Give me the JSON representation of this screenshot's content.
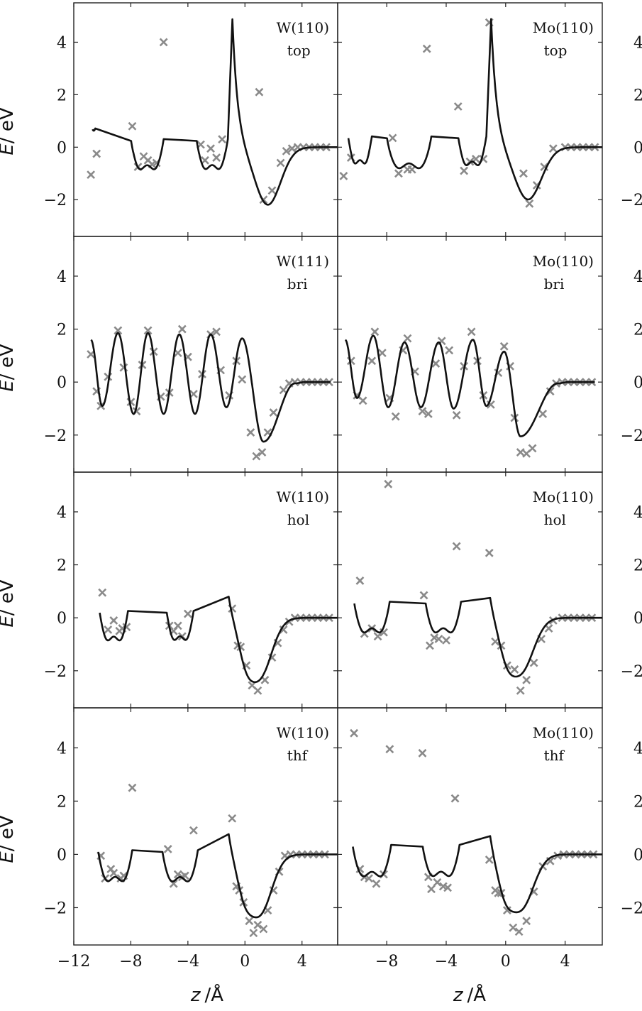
{
  "figure": {
    "xlabel_var": "z",
    "xlabel_unit": "/Å",
    "ylabel_var": "E",
    "ylabel_unit": "/ eV"
  },
  "chart_data": [
    {
      "type": "line+scatter",
      "label_line1": "W(110)",
      "label_line2": "top",
      "xlim": [
        -12,
        6.5
      ],
      "ylim": [
        -3.4,
        5.5
      ],
      "xticks": [
        "−12",
        "−8",
        "−4",
        "0",
        "4"
      ],
      "yticks": [
        "−2",
        "0",
        "2",
        "4"
      ],
      "line": {
        "well_edges": [
          [
            -10.7,
            -10.5
          ],
          [
            -8.0,
            -5.7
          ],
          [
            -3.4,
            -1.2
          ]
        ],
        "well_level": -0.85,
        "final_wall": 0.6,
        "min_x": 1.6,
        "min_y": -2.2
      },
      "points": [
        [
          -10.8,
          -1.05
        ],
        [
          -10.4,
          -0.25
        ],
        [
          -7.9,
          0.8
        ],
        [
          -7.5,
          -0.75
        ],
        [
          -7.1,
          -0.35
        ],
        [
          -6.8,
          -0.5
        ],
        [
          -6.5,
          -0.65
        ],
        [
          -6.2,
          -0.6
        ],
        [
          -5.7,
          4.0
        ],
        [
          -3.1,
          0.1
        ],
        [
          -2.8,
          -0.5
        ],
        [
          -2.4,
          -0.05
        ],
        [
          -2.0,
          -0.4
        ],
        [
          -1.6,
          0.3
        ],
        [
          1.0,
          2.1
        ],
        [
          1.3,
          -2.0
        ],
        [
          1.9,
          -1.65
        ],
        [
          2.5,
          -0.6
        ],
        [
          2.9,
          -0.15
        ],
        [
          3.3,
          -0.05
        ],
        [
          3.7,
          0.0
        ],
        [
          4.1,
          0.0
        ],
        [
          4.5,
          0.0
        ],
        [
          4.9,
          0.0
        ],
        [
          5.3,
          0.0
        ],
        [
          5.7,
          0.0
        ]
      ]
    },
    {
      "type": "line+scatter",
      "label_line1": "Mo(110)",
      "label_line2": "top",
      "xlim": [
        -11.3,
        6.5
      ],
      "ylim": [
        -3.4,
        5.5
      ],
      "xticks": [
        "−8",
        "−4",
        "0",
        "4"
      ],
      "yticks": [
        "−2",
        "0",
        "2",
        "4"
      ],
      "line": {
        "well_edges": [
          [
            -10.6,
            -9.0
          ],
          [
            -8.0,
            -5.0
          ],
          [
            -3.2,
            -1.3
          ]
        ],
        "well_level": -0.75,
        "final_wall": 0.5,
        "min_x": 1.5,
        "min_y": -2.0
      },
      "points": [
        [
          -10.9,
          -1.1
        ],
        [
          -10.4,
          -0.4
        ],
        [
          -7.6,
          0.35
        ],
        [
          -7.2,
          -1.0
        ],
        [
          -6.6,
          -0.85
        ],
        [
          -6.3,
          -0.85
        ],
        [
          -5.3,
          3.75
        ],
        [
          -3.2,
          1.55
        ],
        [
          -2.8,
          -0.9
        ],
        [
          -2.4,
          -0.55
        ],
        [
          -2.0,
          -0.45
        ],
        [
          -1.5,
          -0.45
        ],
        [
          -1.1,
          4.75
        ],
        [
          1.2,
          -1.0
        ],
        [
          1.6,
          -2.15
        ],
        [
          2.1,
          -1.45
        ],
        [
          2.6,
          -0.75
        ],
        [
          3.2,
          -0.05
        ],
        [
          4.0,
          0.0
        ],
        [
          4.4,
          0.0
        ],
        [
          4.8,
          0.0
        ],
        [
          5.2,
          0.0
        ],
        [
          5.6,
          0.0
        ],
        [
          6.0,
          0.0
        ]
      ]
    },
    {
      "type": "line+scatter",
      "label_line1": "W(111)",
      "label_line2": "bri",
      "xlim": [
        -12,
        6.5
      ],
      "ylim": [
        -3.4,
        5.5
      ],
      "xticks": [
        "−12",
        "−8",
        "−4",
        "0",
        "4"
      ],
      "yticks": [
        "−2",
        "0",
        "2",
        "4"
      ],
      "line": {
        "oscillation_maxima": [
          [
            -8.9,
            1.85
          ],
          [
            -6.8,
            1.85
          ],
          [
            -4.6,
            1.8
          ],
          [
            -2.4,
            1.8
          ],
          [
            -0.2,
            1.65
          ]
        ],
        "oscillation_minima": [
          [
            -10.0,
            -0.9
          ],
          [
            -7.8,
            -1.2
          ],
          [
            -5.7,
            -1.2
          ],
          [
            -3.5,
            -1.2
          ],
          [
            -1.3,
            -0.95
          ]
        ],
        "min_x": 1.3,
        "min_y": -2.25
      },
      "points": [
        [
          -10.8,
          1.05
        ],
        [
          -10.4,
          -0.35
        ],
        [
          -10.1,
          -0.9
        ],
        [
          -9.6,
          0.2
        ],
        [
          -8.9,
          1.95
        ],
        [
          -8.5,
          0.55
        ],
        [
          -8.0,
          -0.75
        ],
        [
          -7.6,
          -1.1
        ],
        [
          -7.2,
          0.65
        ],
        [
          -6.8,
          1.95
        ],
        [
          -6.4,
          1.15
        ],
        [
          -5.9,
          -0.55
        ],
        [
          -5.3,
          -0.4
        ],
        [
          -4.7,
          1.1
        ],
        [
          -4.4,
          2.0
        ],
        [
          -4.0,
          0.95
        ],
        [
          -3.6,
          -0.45
        ],
        [
          -3.0,
          0.3
        ],
        [
          -2.4,
          1.8
        ],
        [
          -2.0,
          1.9
        ],
        [
          -1.7,
          0.45
        ],
        [
          -1.1,
          -0.5
        ],
        [
          -0.6,
          0.8
        ],
        [
          -0.2,
          0.1
        ],
        [
          0.4,
          -1.9
        ],
        [
          0.8,
          -2.8
        ],
        [
          1.2,
          -2.65
        ],
        [
          1.6,
          -1.9
        ],
        [
          2.0,
          -1.15
        ],
        [
          2.7,
          -0.3
        ],
        [
          3.1,
          -0.05
        ],
        [
          3.5,
          0.0
        ],
        [
          3.9,
          0.0
        ],
        [
          4.3,
          0.0
        ],
        [
          4.7,
          0.0
        ],
        [
          5.1,
          0.0
        ],
        [
          5.5,
          0.0
        ],
        [
          5.9,
          0.0
        ]
      ]
    },
    {
      "type": "line+scatter",
      "label_line1": "Mo(110)",
      "label_line2": "bri",
      "xlim": [
        -11.3,
        6.5
      ],
      "ylim": [
        -3.4,
        5.5
      ],
      "xticks": [
        "−8",
        "−4",
        "0",
        "4"
      ],
      "yticks": [
        "−2",
        "0",
        "2",
        "4"
      ],
      "line": {
        "oscillation_maxima": [
          [
            -8.9,
            1.75
          ],
          [
            -6.8,
            1.5
          ],
          [
            -4.5,
            1.5
          ],
          [
            -2.2,
            1.6
          ],
          [
            -0.1,
            1.15
          ]
        ],
        "oscillation_minima": [
          [
            -10.0,
            -0.6
          ],
          [
            -7.9,
            -0.95
          ],
          [
            -5.7,
            -0.95
          ],
          [
            -3.5,
            -1.0
          ],
          [
            -1.3,
            -0.9
          ]
        ],
        "min_x": 1.0,
        "min_y": -2.05
      },
      "points": [
        [
          -10.4,
          0.8
        ],
        [
          -10.0,
          -0.5
        ],
        [
          -9.6,
          -0.7
        ],
        [
          -9.0,
          0.8
        ],
        [
          -8.8,
          1.9
        ],
        [
          -8.3,
          1.1
        ],
        [
          -7.8,
          -0.6
        ],
        [
          -7.4,
          -1.3
        ],
        [
          -6.9,
          1.2
        ],
        [
          -6.6,
          1.65
        ],
        [
          -6.1,
          0.4
        ],
        [
          -5.6,
          -1.1
        ],
        [
          -5.2,
          -1.2
        ],
        [
          -4.7,
          0.7
        ],
        [
          -4.3,
          1.55
        ],
        [
          -3.8,
          1.2
        ],
        [
          -3.3,
          -1.25
        ],
        [
          -2.8,
          0.6
        ],
        [
          -2.3,
          1.9
        ],
        [
          -1.9,
          0.8
        ],
        [
          -1.5,
          -0.5
        ],
        [
          -1.0,
          -0.85
        ],
        [
          -0.5,
          0.35
        ],
        [
          -0.1,
          1.35
        ],
        [
          0.3,
          0.6
        ],
        [
          0.6,
          -1.35
        ],
        [
          1.0,
          -2.65
        ],
        [
          1.4,
          -2.7
        ],
        [
          1.8,
          -2.5
        ],
        [
          2.5,
          -1.2
        ],
        [
          3.0,
          -0.35
        ],
        [
          3.4,
          -0.05
        ],
        [
          3.8,
          0.0
        ],
        [
          4.2,
          0.0
        ],
        [
          4.6,
          0.0
        ],
        [
          5.0,
          0.0
        ],
        [
          5.4,
          0.0
        ],
        [
          5.8,
          0.0
        ]
      ]
    },
    {
      "type": "line+scatter",
      "label_line1": "W(110)",
      "label_line2": "hol",
      "xlim": [
        -12,
        6.5
      ],
      "ylim": [
        -3.4,
        5.5
      ],
      "xticks": [
        "−12",
        "−8",
        "−4",
        "0",
        "4"
      ],
      "yticks": [
        "−2",
        "0",
        "2",
        "4"
      ],
      "line": {
        "well_edges": [
          [
            -10.2,
            -8.2
          ],
          [
            -5.5,
            -3.6
          ],
          [
            -1.2,
            null
          ]
        ],
        "well_level": -0.9,
        "shoulder": [
          [
            0.0,
            -0.85
          ],
          [
            1.0,
            -2.25
          ]
        ]
      },
      "points": [
        [
          -10.0,
          0.95
        ],
        [
          -9.6,
          -0.45
        ],
        [
          -9.2,
          -0.1
        ],
        [
          -8.8,
          -0.5
        ],
        [
          -8.6,
          -0.4
        ],
        [
          -8.3,
          -0.35
        ],
        [
          -5.3,
          -0.3
        ],
        [
          -5.0,
          -0.5
        ],
        [
          -4.7,
          -0.3
        ],
        [
          -4.4,
          -0.7
        ],
        [
          -4.0,
          0.15
        ],
        [
          -0.9,
          0.35
        ],
        [
          -0.5,
          -1.05
        ],
        [
          -0.3,
          -1.1
        ],
        [
          0.1,
          -1.8
        ],
        [
          0.5,
          -2.55
        ],
        [
          0.9,
          -2.75
        ],
        [
          1.4,
          -2.35
        ],
        [
          1.9,
          -1.5
        ],
        [
          2.3,
          -0.95
        ],
        [
          2.7,
          -0.45
        ],
        [
          3.1,
          -0.15
        ],
        [
          3.5,
          0.0
        ],
        [
          3.9,
          0.0
        ],
        [
          4.3,
          0.0
        ],
        [
          4.7,
          0.0
        ],
        [
          5.1,
          0.0
        ],
        [
          5.5,
          0.0
        ],
        [
          5.9,
          0.0
        ]
      ]
    },
    {
      "type": "line+scatter",
      "label_line1": "Mo(110)",
      "label_line2": "hol",
      "xlim": [
        -11.3,
        6.5
      ],
      "ylim": [
        -3.4,
        5.5
      ],
      "xticks": [
        "−8",
        "−4",
        "0",
        "4"
      ],
      "yticks": [
        "−2",
        "0",
        "2",
        "4"
      ],
      "line": {
        "well_edges": [
          [
            -10.2,
            -7.8
          ],
          [
            -5.4,
            -3.0
          ],
          [
            -1.1,
            null
          ]
        ],
        "well_level": -0.55,
        "shoulder": [
          [
            0.0,
            -0.8
          ],
          [
            1.0,
            -2.05
          ]
        ]
      },
      "points": [
        [
          -9.8,
          1.4
        ],
        [
          -9.5,
          -0.6
        ],
        [
          -9.0,
          -0.4
        ],
        [
          -8.6,
          -0.7
        ],
        [
          -8.2,
          -0.55
        ],
        [
          -7.9,
          5.05
        ],
        [
          -5.5,
          0.85
        ],
        [
          -5.1,
          -1.05
        ],
        [
          -4.8,
          -0.75
        ],
        [
          -4.5,
          -0.8
        ],
        [
          -4.0,
          -0.85
        ],
        [
          -3.3,
          2.7
        ],
        [
          -1.1,
          2.45
        ],
        [
          -0.7,
          -0.9
        ],
        [
          -0.3,
          -1.05
        ],
        [
          0.1,
          -1.8
        ],
        [
          0.6,
          -1.95
        ],
        [
          1.0,
          -2.75
        ],
        [
          1.4,
          -2.35
        ],
        [
          1.9,
          -1.7
        ],
        [
          2.4,
          -0.8
        ],
        [
          2.9,
          -0.4
        ],
        [
          3.2,
          -0.1
        ],
        [
          3.8,
          0.0
        ],
        [
          4.2,
          0.0
        ],
        [
          4.6,
          0.0
        ],
        [
          5.0,
          0.0
        ],
        [
          5.4,
          0.0
        ],
        [
          5.8,
          0.0
        ]
      ]
    },
    {
      "type": "line+scatter",
      "label_line1": "W(110)",
      "label_line2": "thf",
      "xlim": [
        -12,
        6.5
      ],
      "ylim": [
        -3.4,
        5.5
      ],
      "xticks": [
        "−12",
        "−8",
        "−4",
        "0",
        "4"
      ],
      "yticks": [
        "−2",
        "0",
        "2",
        "4"
      ],
      "line": {
        "well_edges": [
          [
            -10.3,
            -7.9
          ],
          [
            -5.8,
            -3.3
          ],
          [
            -1.2,
            null
          ]
        ],
        "well_level": -1.0,
        "shoulder": [
          [
            -0.1,
            -0.9
          ],
          [
            1.0,
            -2.25
          ]
        ]
      },
      "points": [
        [
          -10.1,
          -0.05
        ],
        [
          -9.8,
          -0.9
        ],
        [
          -9.4,
          -0.55
        ],
        [
          -9.2,
          -0.7
        ],
        [
          -8.7,
          -0.9
        ],
        [
          -8.5,
          -0.8
        ],
        [
          -7.9,
          2.5
        ],
        [
          -5.4,
          0.2
        ],
        [
          -5.0,
          -1.1
        ],
        [
          -4.7,
          -0.75
        ],
        [
          -4.4,
          -0.85
        ],
        [
          -4.2,
          -0.8
        ],
        [
          -3.6,
          0.9
        ],
        [
          -0.9,
          1.35
        ],
        [
          -0.6,
          -1.2
        ],
        [
          -0.4,
          -1.35
        ],
        [
          -0.1,
          -1.8
        ],
        [
          0.3,
          -2.5
        ],
        [
          0.6,
          -2.95
        ],
        [
          0.9,
          -2.65
        ],
        [
          1.3,
          -2.8
        ],
        [
          1.6,
          -2.1
        ],
        [
          2.0,
          -1.35
        ],
        [
          2.4,
          -0.65
        ],
        [
          2.8,
          -0.05
        ],
        [
          3.2,
          0.0
        ],
        [
          3.6,
          0.0
        ],
        [
          4.0,
          0.0
        ],
        [
          4.4,
          0.0
        ],
        [
          4.8,
          0.0
        ],
        [
          5.2,
          0.0
        ],
        [
          5.6,
          0.0
        ]
      ]
    },
    {
      "type": "line+scatter",
      "label_line1": "Mo(110)",
      "label_line2": "thf",
      "xlim": [
        -11.3,
        6.5
      ],
      "ylim": [
        -3.4,
        5.5
      ],
      "xticks": [
        "−8",
        "−4",
        "0",
        "4"
      ],
      "yticks": [
        "−2",
        "0",
        "2",
        "4"
      ],
      "line": {
        "well_edges": [
          [
            -10.3,
            -7.7
          ],
          [
            -5.6,
            -3.1
          ],
          [
            -1.1,
            null
          ]
        ],
        "well_level": -0.8,
        "shoulder": [
          [
            -0.1,
            -0.9
          ],
          [
            1.0,
            -2.05
          ]
        ]
      },
      "points": [
        [
          -10.2,
          4.55
        ],
        [
          -9.8,
          -0.55
        ],
        [
          -9.5,
          -0.85
        ],
        [
          -9.2,
          -0.9
        ],
        [
          -8.7,
          -1.1
        ],
        [
          -8.2,
          -0.75
        ],
        [
          -7.8,
          3.95
        ],
        [
          -5.6,
          3.8
        ],
        [
          -5.2,
          -0.85
        ],
        [
          -5.0,
          -1.3
        ],
        [
          -4.6,
          -1.05
        ],
        [
          -4.2,
          -1.2
        ],
        [
          -3.9,
          -1.25
        ],
        [
          -3.4,
          2.1
        ],
        [
          -1.1,
          -0.2
        ],
        [
          -0.7,
          -1.35
        ],
        [
          -0.5,
          -1.45
        ],
        [
          -0.3,
          -1.45
        ],
        [
          0.1,
          -2.1
        ],
        [
          0.5,
          -2.75
        ],
        [
          0.9,
          -2.9
        ],
        [
          1.4,
          -2.5
        ],
        [
          1.9,
          -1.4
        ],
        [
          2.5,
          -0.45
        ],
        [
          3.0,
          -0.25
        ],
        [
          3.5,
          -0.05
        ],
        [
          3.9,
          0.0
        ],
        [
          4.3,
          0.0
        ],
        [
          4.7,
          0.0
        ],
        [
          5.1,
          0.0
        ],
        [
          5.5,
          0.0
        ],
        [
          5.9,
          0.0
        ]
      ]
    }
  ]
}
